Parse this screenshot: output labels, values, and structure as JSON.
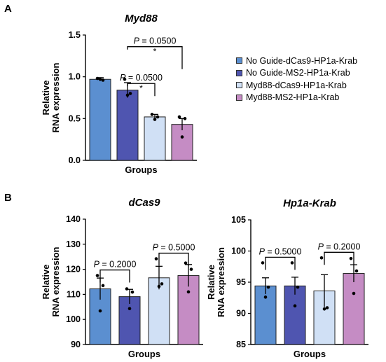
{
  "panel_labels": [
    "A",
    "B"
  ],
  "colors": [
    "#5b8fd0",
    "#4f55b0",
    "#d0e0f5",
    "#c58cc4"
  ],
  "legend": [
    "No Guide-dCas9-HP1a-Krab",
    "No Guide-MS2-HP1a-Krab",
    "Myd88-dCas9-HP1a-Krab",
    "Myd88-MS2-HP1a-Krab"
  ],
  "chart_data": [
    {
      "type": "bar",
      "title": "Myd88",
      "xlabel": "Groups",
      "ylabel": "Relative RNA expression",
      "ylim": [
        0,
        1.5
      ],
      "yticks": [
        "0.0",
        "0.5",
        "1.0",
        "1.5"
      ],
      "values": [
        0.97,
        0.84,
        0.52,
        0.43
      ],
      "errors": [
        0.02,
        0.09,
        0.03,
        0.07
      ],
      "points": [
        [
          0.98,
          0.96,
          0.97
        ],
        [
          0.97,
          0.8,
          0.78
        ],
        [
          0.55,
          0.52,
          0.49
        ],
        [
          0.52,
          0.5,
          0.28
        ]
      ],
      "comparisons": [
        {
          "from": 1,
          "to": 2,
          "p": "P = 0.0500",
          "mark": "*"
        },
        {
          "from": 1,
          "to": 3,
          "p": "P = 0.0500",
          "mark": "*"
        }
      ]
    },
    {
      "type": "bar",
      "title": "dCas9",
      "xlabel": "Groups",
      "ylabel": "Relative RNA expression",
      "ylim": [
        90,
        140
      ],
      "yticks": [
        "90",
        "100",
        "110",
        "120",
        "130",
        "140"
      ],
      "values": [
        112.2,
        109.1,
        116.6,
        117.5
      ],
      "errors": [
        4.3,
        2.9,
        4.6,
        4.4
      ],
      "points": [
        [
          117.5,
          113.5,
          103.4
        ],
        [
          112.2,
          110.9,
          104.3
        ],
        [
          124.2,
          114.2,
          113.2
        ],
        [
          122.5,
          120.0,
          111.0
        ]
      ],
      "comparisons": [
        {
          "from": 0,
          "to": 1,
          "p": "P = 0.2000",
          "mark": ""
        },
        {
          "from": 2,
          "to": 3,
          "p": "P = 0.5000",
          "mark": ""
        }
      ]
    },
    {
      "type": "bar",
      "title": "Hp1a-Krab",
      "xlabel": "Groups",
      "ylabel": "Relative RNA expression",
      "ylim": [
        85,
        105
      ],
      "yticks": [
        "85",
        "90",
        "95",
        "100",
        "105"
      ],
      "values": [
        94.4,
        94.4,
        93.6,
        96.4
      ],
      "errors": [
        1.3,
        1.4,
        2.6,
        1.4
      ],
      "points": [
        [
          98.1,
          94.2,
          92.6
        ],
        [
          98.1,
          94.2,
          91.2
        ],
        [
          98.9,
          90.9,
          90.7
        ],
        [
          98.8,
          96.8,
          93.2
        ]
      ],
      "comparisons": [
        {
          "from": 0,
          "to": 1,
          "p": "P = 0.5000",
          "mark": ""
        },
        {
          "from": 2,
          "to": 3,
          "p": "P = 0.2000",
          "mark": ""
        }
      ]
    }
  ]
}
